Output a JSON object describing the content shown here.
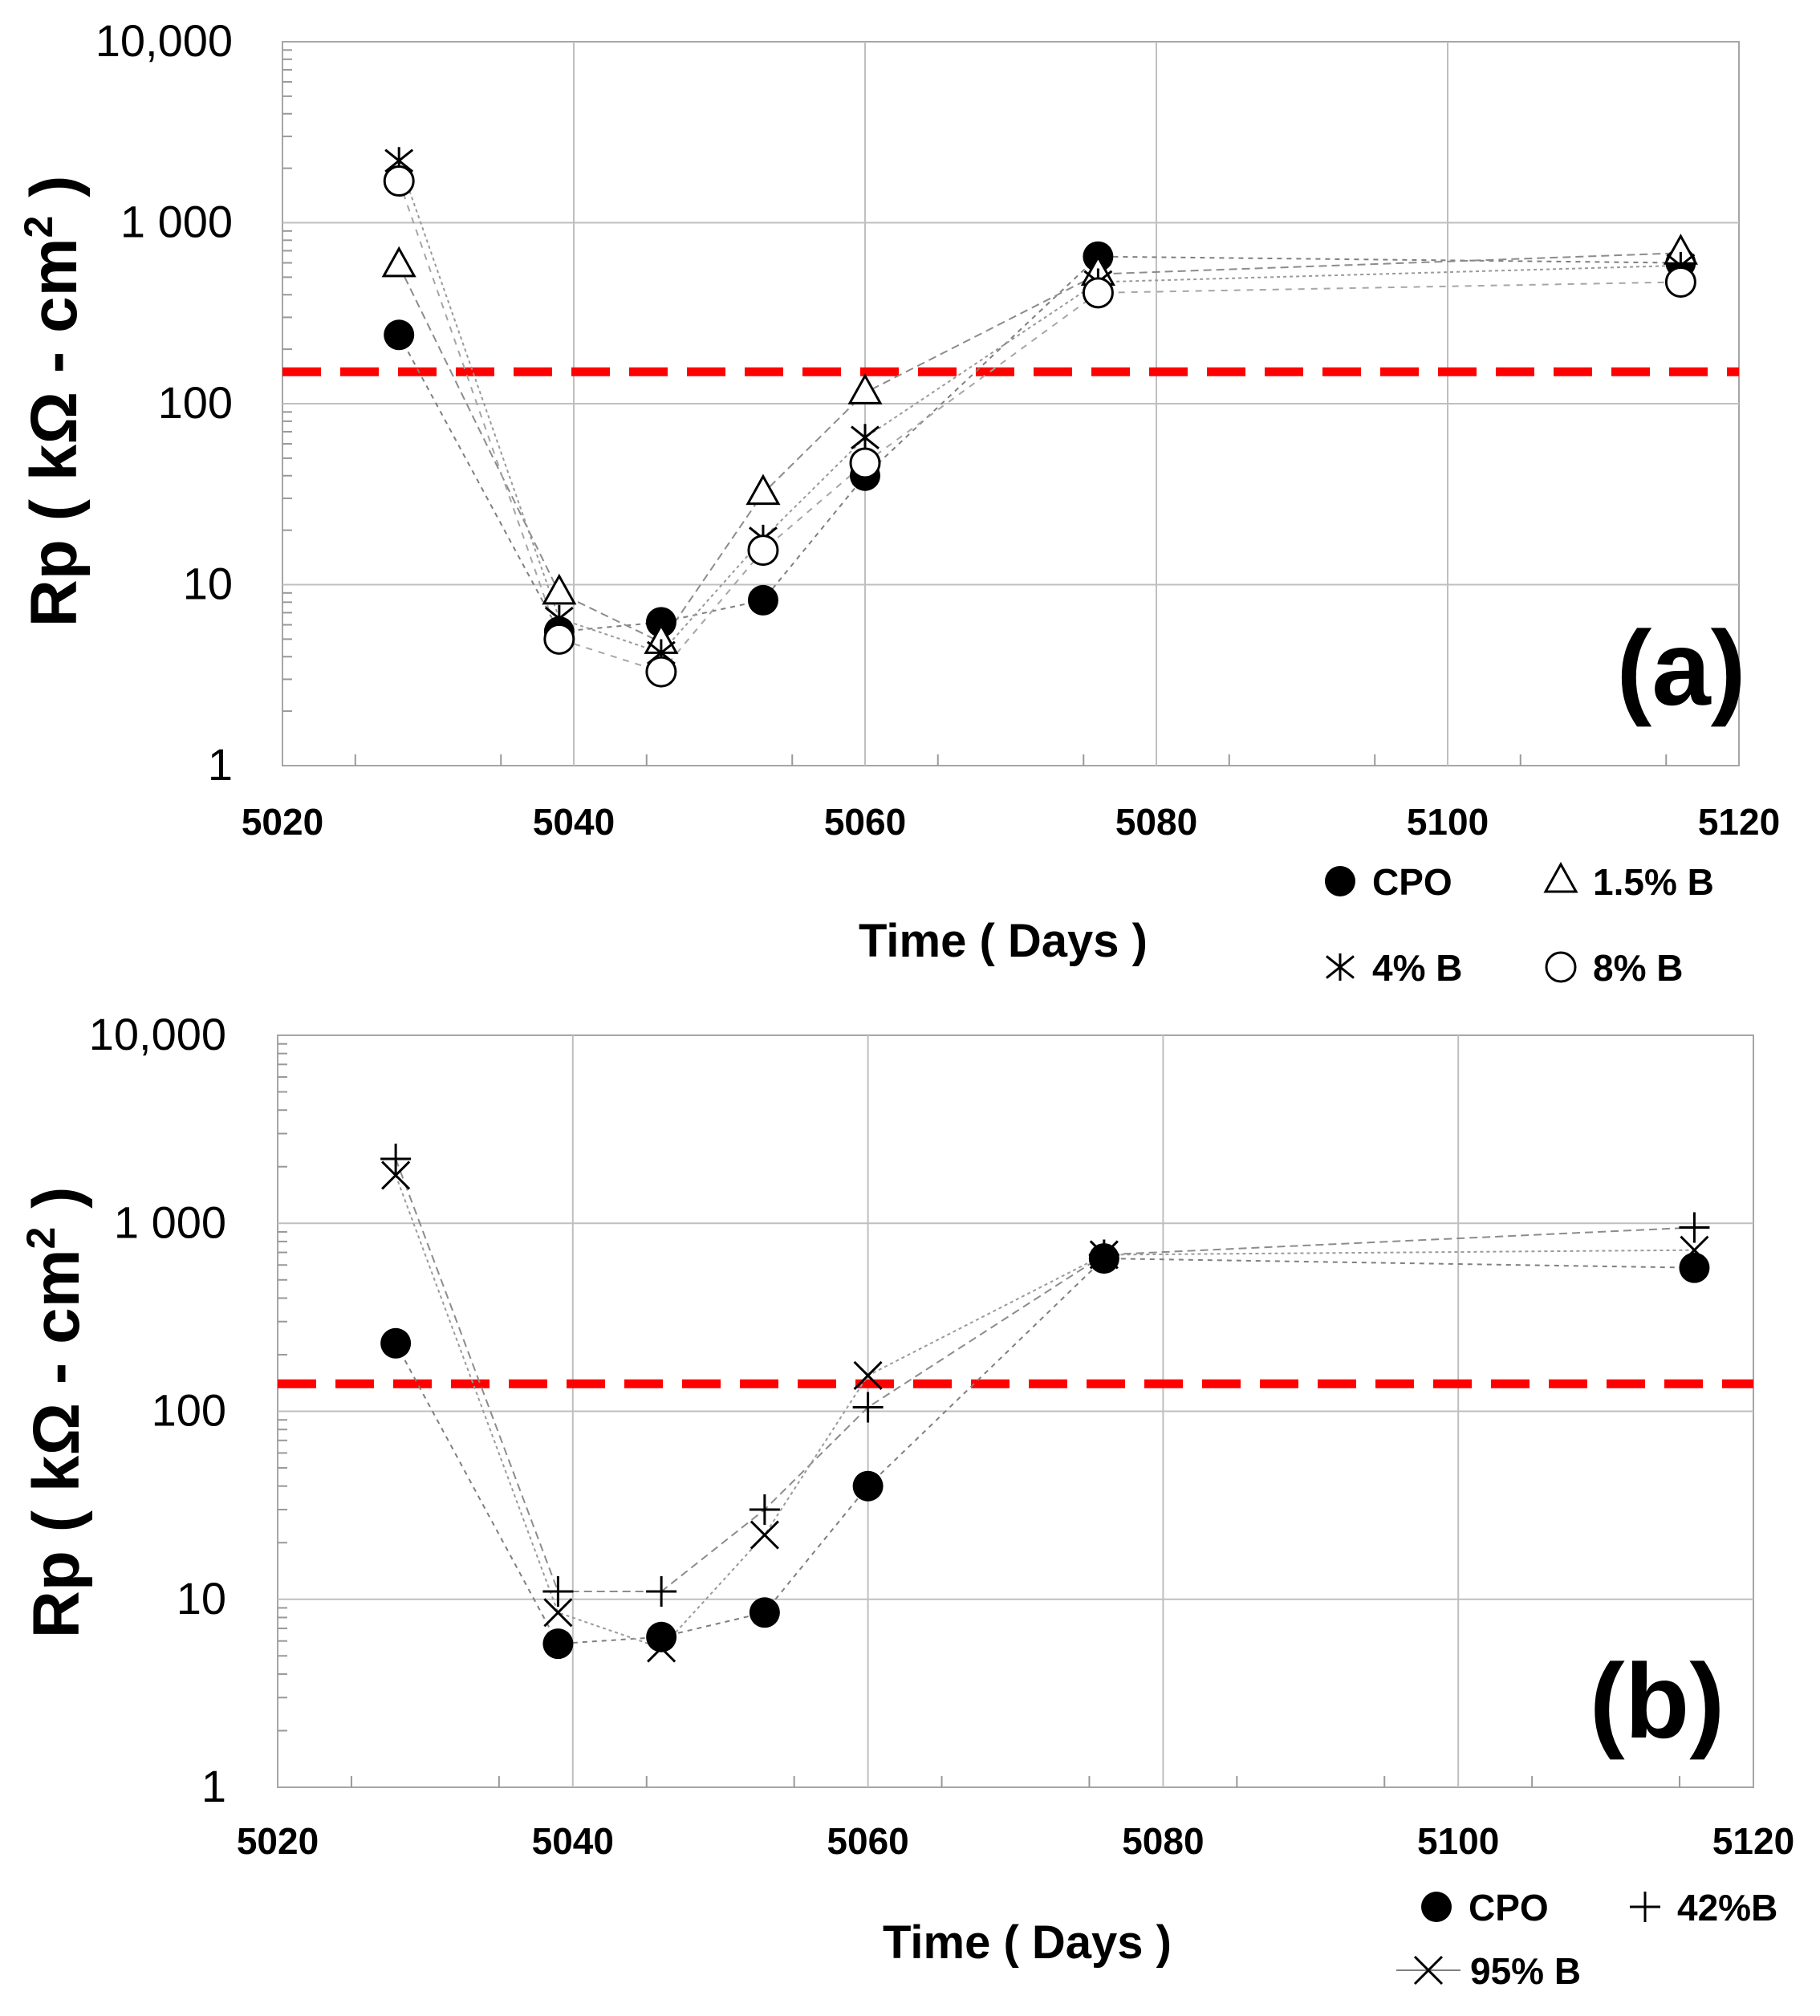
{
  "chart_data": [
    {
      "type": "scatter",
      "panel_label": "(a)",
      "xlabel": "Time  ( Days )",
      "ylabel": "Rp  ( kΩ - cm",
      "ylabel_sup": "2",
      "ylabel_close": " )",
      "xscale": "linear",
      "yscale": "log",
      "xlim": [
        5020,
        5120
      ],
      "ylim": [
        1,
        10000
      ],
      "xticks": [
        "5020",
        "5040",
        "5060",
        "5080",
        "5100",
        "5120"
      ],
      "yticks": [
        "1",
        "10",
        "100",
        "1 000",
        "10,000"
      ],
      "ytick_values": [
        1,
        10,
        100,
        1000,
        10000
      ],
      "grid": true,
      "threshold": {
        "value": 150,
        "color": "#ff0000",
        "style": "dashed"
      },
      "series": [
        {
          "name": "CPO",
          "marker": "filled-circle",
          "x": [
            5028,
            5039,
            5046,
            5053,
            5060,
            5076,
            5116
          ],
          "values": [
            240,
            5.5,
            6.2,
            8.2,
            40,
            650,
            600
          ]
        },
        {
          "name": "1.5% B",
          "marker": "triangle",
          "x": [
            5028,
            5039,
            5046,
            5053,
            5060,
            5076,
            5116
          ],
          "values": [
            580,
            9,
            4.8,
            32,
            115,
            520,
            680
          ]
        },
        {
          "name": "4% B",
          "marker": "asterisk",
          "x": [
            5028,
            5039,
            5046,
            5053,
            5060,
            5076,
            5116
          ],
          "values": [
            2200,
            6.5,
            4.2,
            18,
            65,
            470,
            580
          ]
        },
        {
          "name": "8% B",
          "marker": "open-circle",
          "x": [
            5028,
            5039,
            5046,
            5053,
            5060,
            5076,
            5116
          ],
          "values": [
            1700,
            5,
            3.3,
            15.5,
            47,
            410,
            470
          ]
        }
      ]
    },
    {
      "type": "scatter",
      "panel_label": "(b)",
      "xlabel": "Time  ( Days )",
      "ylabel": "Rp  ( kΩ - cm",
      "ylabel_sup": "2",
      "ylabel_close": " )",
      "xscale": "linear",
      "yscale": "log",
      "xlim": [
        5020,
        5120
      ],
      "ylim": [
        1,
        10000
      ],
      "xticks": [
        "5020",
        "5040",
        "5060",
        "5080",
        "5100",
        "5120"
      ],
      "yticks": [
        "1",
        "10",
        "100",
        "1 000",
        "10,000"
      ],
      "ytick_values": [
        1,
        10,
        100,
        1000,
        10000
      ],
      "grid": true,
      "threshold": {
        "value": 140,
        "color": "#ff0000",
        "style": "dashed"
      },
      "series": [
        {
          "name": "CPO",
          "marker": "filled-circle",
          "x": [
            5028,
            5039,
            5046,
            5053,
            5060,
            5076,
            5116
          ],
          "values": [
            230,
            5.8,
            6.3,
            8.5,
            40,
            650,
            580
          ]
        },
        {
          "name": "42%B",
          "marker": "plus",
          "x": [
            5028,
            5039,
            5046,
            5053,
            5060,
            5076,
            5116
          ],
          "values": [
            2200,
            11,
            11,
            30,
            105,
            680,
            950
          ]
        },
        {
          "name": "95% B",
          "marker": "cross",
          "x": [
            5028,
            5039,
            5046,
            5053,
            5060,
            5076,
            5116
          ],
          "values": [
            1800,
            8.5,
            5.5,
            22,
            155,
            680,
            720
          ]
        }
      ]
    }
  ]
}
